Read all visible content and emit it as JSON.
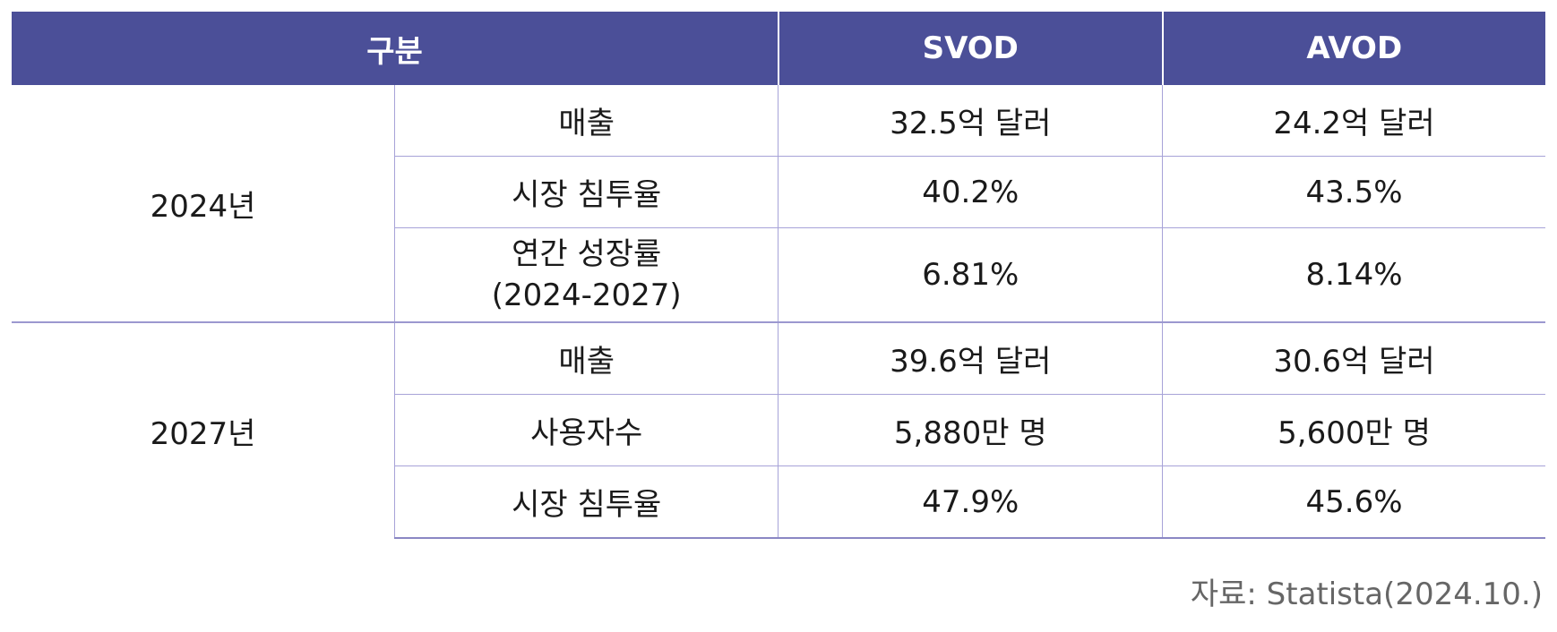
{
  "header": {
    "category": "구분",
    "svod": "SVOD",
    "avod": "AVOD"
  },
  "groups": [
    {
      "year": "2024년",
      "rows": [
        {
          "label": "매출",
          "svod": "32.5억 달러",
          "avod": "24.2억 달러"
        },
        {
          "label": "시장 침투율",
          "svod": "40.2%",
          "avod": "43.5%"
        },
        {
          "label_line1": "연간 성장률",
          "label_line2": "(2024-2027)",
          "svod": "6.81%",
          "avod": "8.14%"
        }
      ]
    },
    {
      "year": "2027년",
      "rows": [
        {
          "label": "매출",
          "svod": "39.6억 달러",
          "avod": "30.6억 달러"
        },
        {
          "label": "사용자수",
          "svod": "5,880만 명",
          "avod": "5,600만 명"
        },
        {
          "label": "시장 침투율",
          "svod": "47.9%",
          "avod": "45.6%"
        }
      ]
    }
  ],
  "source": "자료: Statista(2024.10.)",
  "colors": {
    "header_bg": "#4b4f98",
    "header_text": "#ffffff",
    "grid_line": "#a7a3d8"
  }
}
